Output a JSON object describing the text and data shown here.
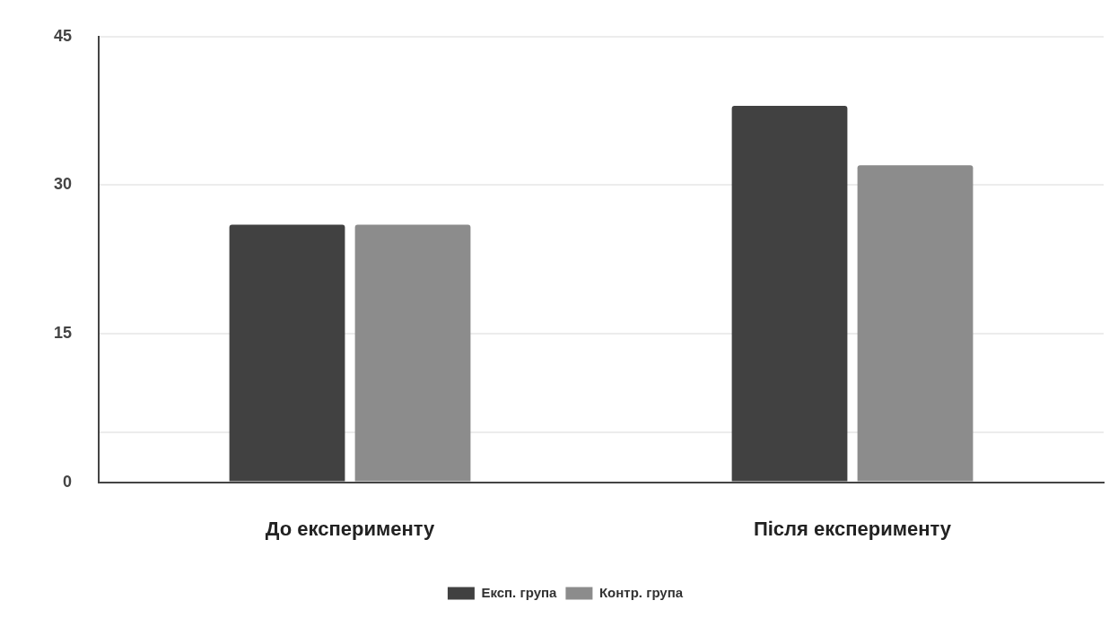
{
  "chart_data": {
    "type": "bar",
    "categories": [
      "До експерименту",
      "Після експерименту"
    ],
    "series": [
      {
        "name": "Експ. група",
        "color": "#414141",
        "values": [
          26,
          38
        ]
      },
      {
        "name": "Контр. група",
        "color": "#8c8c8c",
        "values": [
          26,
          32
        ]
      }
    ],
    "ylim": [
      0,
      45
    ],
    "yticks": [
      0,
      {
        "value": 5,
        "label": null
      },
      15,
      30,
      45
    ],
    "grid": "y",
    "legend": "bottom"
  }
}
